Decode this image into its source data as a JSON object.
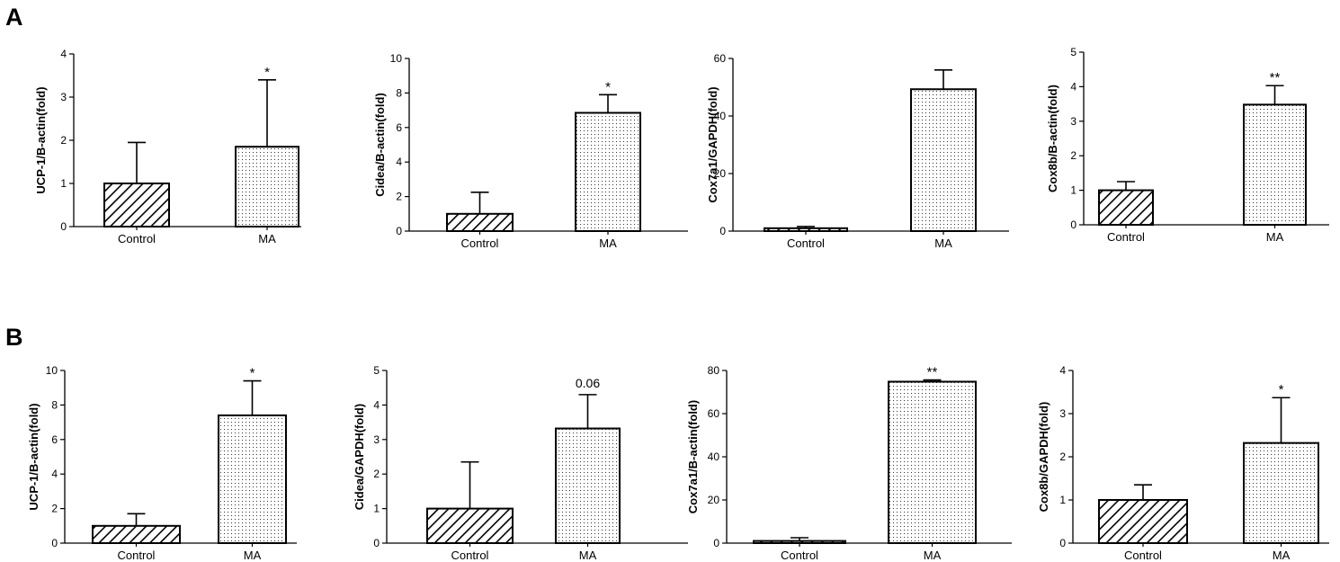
{
  "panels": [
    {
      "letter": "A"
    },
    {
      "letter": "B"
    }
  ],
  "colors": {
    "axis": "#000000",
    "bar_outline": "#000000",
    "hatch": "#000000",
    "dots": "#333333",
    "background": "#ffffff"
  },
  "chart_data": [
    {
      "panel": "A",
      "type": "bar",
      "categories": [
        "Control",
        "MA"
      ],
      "values": [
        1.0,
        1.85
      ],
      "error": [
        0.95,
        1.55
      ],
      "ylabel": "UCP-1/B-actin(fold)",
      "ylim": [
        0,
        4
      ],
      "yticks": [
        0,
        1,
        2,
        3,
        4
      ],
      "annotations": [
        "",
        "*"
      ],
      "patterns": [
        "hatch",
        "dots"
      ],
      "grid": false
    },
    {
      "panel": "A",
      "type": "bar",
      "categories": [
        "Control",
        "MA"
      ],
      "values": [
        1.0,
        6.85
      ],
      "error": [
        1.25,
        1.05
      ],
      "ylabel": "Cidea/B-actin(fold)",
      "ylim": [
        0,
        10
      ],
      "yticks": [
        0,
        2,
        4,
        6,
        8,
        10
      ],
      "annotations": [
        "",
        "*"
      ],
      "patterns": [
        "hatch",
        "dots"
      ],
      "grid": false
    },
    {
      "panel": "A",
      "type": "bar",
      "categories": [
        "Control",
        "MA"
      ],
      "values": [
        1.0,
        49.3
      ],
      "error": [
        0.6,
        6.7
      ],
      "ylabel": "Cox7a1/GAPDH(fold)",
      "ylim": [
        0,
        60
      ],
      "yticks": [
        0,
        20,
        40,
        60
      ],
      "annotations": [
        "",
        ""
      ],
      "patterns": [
        "hatch",
        "dots"
      ],
      "grid": false
    },
    {
      "panel": "A",
      "type": "bar",
      "categories": [
        "Control",
        "MA"
      ],
      "values": [
        1.0,
        3.48
      ],
      "error": [
        0.25,
        0.55
      ],
      "ylabel": "Cox8b/B-actin(fold)",
      "ylim": [
        0,
        5
      ],
      "yticks": [
        0,
        1,
        2,
        3,
        4,
        5
      ],
      "annotations": [
        "",
        "**"
      ],
      "patterns": [
        "hatch",
        "dots"
      ],
      "grid": false
    },
    {
      "panel": "B",
      "type": "bar",
      "categories": [
        "Control",
        "MA"
      ],
      "values": [
        1.0,
        7.4
      ],
      "error": [
        0.7,
        2.0
      ],
      "ylabel": "UCP-1/B-actin(fold)",
      "ylim": [
        0,
        10
      ],
      "yticks": [
        0,
        2,
        4,
        6,
        8,
        10
      ],
      "annotations": [
        "",
        "*"
      ],
      "patterns": [
        "hatch",
        "dots"
      ],
      "grid": false
    },
    {
      "panel": "B",
      "type": "bar",
      "categories": [
        "Control",
        "MA"
      ],
      "values": [
        1.0,
        3.32
      ],
      "error": [
        1.35,
        0.98
      ],
      "ylabel": "Cidea/GAPDH(fold)",
      "ylim": [
        0,
        5
      ],
      "yticks": [
        0,
        1,
        2,
        3,
        4,
        5
      ],
      "annotations": [
        "",
        "0.06"
      ],
      "patterns": [
        "hatch",
        "dots"
      ],
      "grid": false
    },
    {
      "panel": "B",
      "type": "bar",
      "categories": [
        "Control",
        "MA"
      ],
      "values": [
        1.0,
        74.8
      ],
      "error": [
        1.5,
        0.8
      ],
      "ylabel": "Cox7a1/B-actin(fold)",
      "ylim": [
        0,
        80
      ],
      "yticks": [
        0,
        20,
        40,
        60,
        80
      ],
      "annotations": [
        "",
        "**"
      ],
      "patterns": [
        "hatch",
        "dots"
      ],
      "grid": false
    },
    {
      "panel": "B",
      "type": "bar",
      "categories": [
        "Control",
        "MA"
      ],
      "values": [
        1.0,
        2.32
      ],
      "error": [
        0.35,
        1.05
      ],
      "ylabel": "Cox8b/GAPDH(fold)",
      "ylim": [
        0,
        4
      ],
      "yticks": [
        0,
        1,
        2,
        3,
        4
      ],
      "annotations": [
        "",
        "*"
      ],
      "patterns": [
        "hatch",
        "dots"
      ],
      "grid": false
    }
  ]
}
